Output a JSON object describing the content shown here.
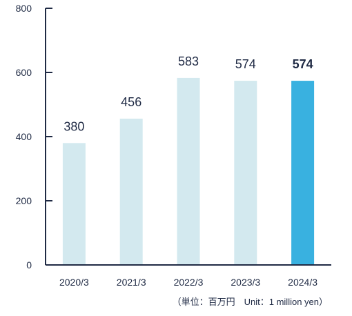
{
  "chart_data": {
    "type": "bar",
    "categories": [
      "2020/3",
      "2021/3",
      "2022/3",
      "2023/3",
      "2024/3"
    ],
    "values": [
      380,
      456,
      583,
      574,
      574
    ],
    "value_labels": [
      "380",
      "456",
      "583",
      "574",
      "574"
    ],
    "highlight_index": 4,
    "ylim": [
      0,
      800
    ],
    "yticks": [
      0,
      200,
      400,
      600,
      800
    ],
    "ytick_labels": [
      "0",
      "200",
      "400",
      "600",
      "800"
    ],
    "unit_note": "（単位：百万円　Unit：1 million yen）",
    "colors": {
      "bar": "#d3e9ef",
      "highlight": "#39b1e0",
      "axis": "#1f2a44",
      "text": "#1f2a44"
    },
    "grid": false,
    "legend": "none"
  }
}
